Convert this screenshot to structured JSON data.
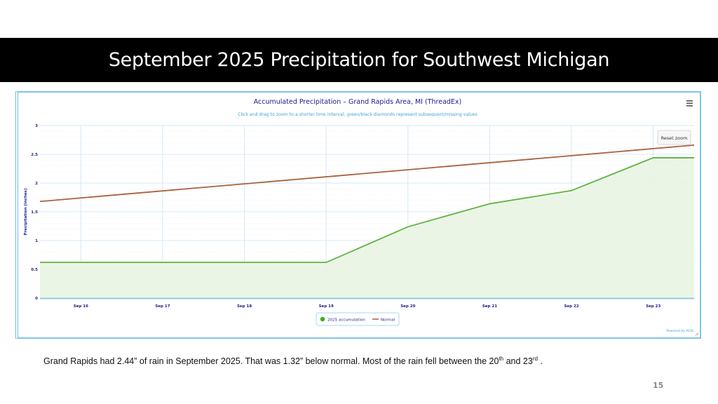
{
  "slide": {
    "title": "September 2025 Precipitation for Southwest Michigan",
    "caption_part1": "Grand Rapids had 2.44” of rain in September 2025. That was 1.32” below normal.  Most of the rain fell between the 20",
    "caption_sup1": "th",
    "caption_part2": " and 23",
    "caption_sup2": "rd",
    "caption_part3": " .",
    "page_number": "15"
  },
  "chart_ui": {
    "menu_icon": "hamburger-icon",
    "reset_zoom_label": "Reset zoom",
    "credit": "Powered by ACIS"
  },
  "colors": {
    "accumulation": "#5db33f",
    "accumulation_fill": "#e9f4e2",
    "normal": "#a9613c",
    "title": "#1a1a8c",
    "subtitle": "#3ba3d8",
    "grid": "#d6e8f5"
  },
  "chart_data": {
    "type": "area",
    "title": "Accumulated Precipitation – Grand Rapids Area, MI (ThreadEx)",
    "subtitle": "Click and drag to zoom to a shorter time interval; green/black diamonds represent subsequent/missing values",
    "xlabel": "",
    "ylabel": "Precipitation (inches)",
    "ylim": [
      0,
      3
    ],
    "xlim": [
      15.5,
      23.5
    ],
    "yticks": [
      "0",
      "0.5",
      "1",
      "1.5",
      "2",
      "2.5",
      "3"
    ],
    "ytick_values": [
      0,
      0.5,
      1,
      1.5,
      2,
      2.5,
      3
    ],
    "categories": [
      "Sep 16",
      "Sep 17",
      "Sep 18",
      "Sep 19",
      "Sep 20",
      "Sep 21",
      "Sep 22",
      "Sep 23"
    ],
    "category_days": [
      16,
      17,
      18,
      19,
      20,
      21,
      22,
      23
    ],
    "grid": true,
    "legend_position": "bottom-center",
    "series": [
      {
        "name": "2025 accumulation",
        "type": "area",
        "x": [
          15.5,
          16,
          17,
          18,
          19,
          20,
          21,
          22,
          23,
          23.5
        ],
        "values": [
          0.62,
          0.62,
          0.62,
          0.62,
          0.62,
          1.24,
          1.64,
          1.87,
          2.44,
          2.44
        ]
      },
      {
        "name": "Normal",
        "type": "line",
        "x": [
          15.5,
          23.5
        ],
        "values": [
          1.68,
          2.66
        ]
      }
    ]
  }
}
